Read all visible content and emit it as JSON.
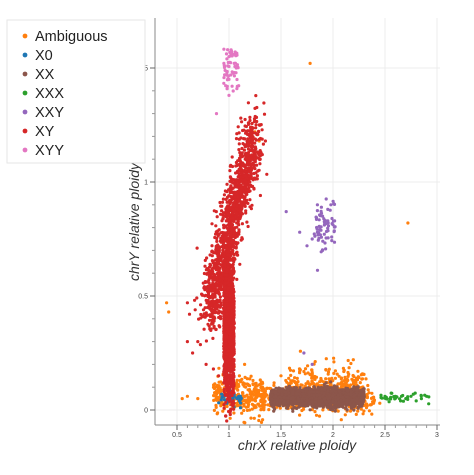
{
  "chart_data": {
    "type": "scatter",
    "title": "",
    "xlabel": "chrX relative ploidy",
    "ylabel": "chrY relative ploidy",
    "xlim": [
      0.3,
      3.0
    ],
    "ylim": [
      -0.05,
      1.7
    ],
    "x_ticks": [
      0.5,
      1,
      1.5,
      2,
      2.5,
      3
    ],
    "x_tick_labels": [
      "0.5",
      "1",
      "1.5",
      "2",
      "2.5",
      "3"
    ],
    "y_ticks": [
      0,
      0.5,
      1,
      1.5
    ],
    "y_tick_labels": [
      "0",
      "0.5",
      "1",
      "1.5"
    ],
    "grid": true,
    "legend_position": "top-left",
    "series": [
      {
        "name": "Ambiguous",
        "color": "#ff7f0e",
        "approx_count": 900,
        "clusters": [
          {
            "x_range": [
              1.3,
              2.4
            ],
            "y_center": 0.05,
            "y_spread": 0.03
          },
          {
            "x_range": [
              0.85,
              1.35
            ],
            "y_center": 0.06,
            "y_spread": 0.04
          },
          {
            "x_range": [
              1.55,
              2.3
            ],
            "y_center": 0.1,
            "y_spread": 0.05
          }
        ],
        "points": [
          [
            0.42,
            0.43
          ],
          [
            0.4,
            0.47
          ],
          [
            0.6,
            0.06
          ],
          [
            0.55,
            0.05
          ],
          [
            1.1,
            0.15
          ],
          [
            1.05,
            0.19
          ],
          [
            1.78,
            1.52
          ],
          [
            2.72,
            0.82
          ],
          [
            1.52,
            0.09
          ],
          [
            1.95,
            0.12
          ],
          [
            2.2,
            0.12
          ],
          [
            2.45,
            0.03
          ],
          [
            2.3,
            0.02
          ],
          [
            1.25,
            1.22
          ],
          [
            1.3,
            1.25
          ],
          [
            1.2,
            1.17
          ],
          [
            1.29,
            1.18
          ],
          [
            1.15,
            0.2
          ],
          [
            1.88,
            0.06
          ],
          [
            2.05,
            0.03
          ],
          [
            0.7,
            0.05
          ],
          [
            1.68,
            0.17
          ],
          [
            1.5,
            0.15
          ]
        ]
      },
      {
        "name": "X0",
        "color": "#1f77b4",
        "approx_count": 30,
        "clusters": [
          {
            "x_range": [
              0.9,
              1.12
            ],
            "y_center": 0.05,
            "y_spread": 0.02
          }
        ],
        "points": [
          [
            0.95,
            0.06
          ],
          [
            1.0,
            0.05
          ],
          [
            1.02,
            0.04
          ],
          [
            1.05,
            0.06
          ],
          [
            0.98,
            0.03
          ],
          [
            1.08,
            0.05
          ],
          [
            1.1,
            0.04
          ]
        ]
      },
      {
        "name": "XX",
        "color": "#8c564b",
        "approx_count": 3000,
        "clusters": [
          {
            "x_range": [
              1.4,
              2.3
            ],
            "y_center": 0.055,
            "y_spread": 0.018
          }
        ],
        "points": [
          [
            1.45,
            0.06
          ],
          [
            1.6,
            0.05
          ],
          [
            1.75,
            0.05
          ],
          [
            1.9,
            0.06
          ],
          [
            2.05,
            0.05
          ],
          [
            2.2,
            0.06
          ],
          [
            1.85,
            0.08
          ],
          [
            1.7,
            0.04
          ],
          [
            1.95,
            0.05
          ]
        ]
      },
      {
        "name": "XXX",
        "color": "#2ca02c",
        "approx_count": 30,
        "clusters": [
          {
            "x_range": [
              2.45,
              2.95
            ],
            "y_center": 0.055,
            "y_spread": 0.012
          }
        ],
        "points": [
          [
            2.5,
            0.06
          ],
          [
            2.55,
            0.05
          ],
          [
            2.6,
            0.06
          ],
          [
            2.65,
            0.04
          ],
          [
            2.7,
            0.05
          ],
          [
            2.75,
            0.06
          ],
          [
            2.8,
            0.04
          ],
          [
            2.85,
            0.05
          ],
          [
            2.9,
            0.06
          ]
        ]
      },
      {
        "name": "XXY",
        "color": "#9467bd",
        "approx_count": 60,
        "clusters": [
          {
            "x_range": [
              1.82,
              2.02
            ],
            "y_center": 0.8,
            "y_spread": 0.06
          }
        ],
        "points": [
          [
            1.9,
            0.85
          ],
          [
            1.95,
            0.88
          ],
          [
            1.85,
            0.78
          ],
          [
            1.8,
            0.75
          ],
          [
            1.92,
            0.82
          ],
          [
            1.98,
            0.9
          ],
          [
            1.75,
            0.72
          ],
          [
            1.68,
            0.78
          ],
          [
            1.85,
            0.9
          ],
          [
            1.9,
            0.7
          ],
          [
            1.55,
            0.87
          ],
          [
            1.72,
            0.25
          ],
          [
            1.8,
            0.2
          ],
          [
            1.95,
            0.83
          ],
          [
            1.99,
            0.84
          ]
        ]
      },
      {
        "name": "XY",
        "color": "#d62728",
        "approx_count": 8000,
        "clusters": [
          {
            "x_range": [
              0.75,
              1.35
            ],
            "y_center": 0.7,
            "y_spread": 0.15,
            "shape": "diagonal"
          },
          {
            "x_range": [
              0.95,
              1.05
            ],
            "y_center": 0.35,
            "y_spread": 0.15
          }
        ],
        "points": [
          [
            0.9,
            0.15
          ],
          [
            0.85,
            0.18
          ],
          [
            0.7,
            0.3
          ],
          [
            0.6,
            0.3
          ],
          [
            0.65,
            0.25
          ],
          [
            0.78,
            0.2
          ],
          [
            1.3,
            1.1
          ],
          [
            1.35,
            1.18
          ],
          [
            1.32,
            1.12
          ],
          [
            0.8,
            0.6
          ],
          [
            1.15,
            1.05
          ],
          [
            1.2,
            1.0
          ],
          [
            1.25,
            1.12
          ],
          [
            0.95,
            0.12
          ],
          [
            1.0,
            0.1
          ],
          [
            0.62,
            0.42
          ],
          [
            0.6,
            0.47
          ]
        ]
      },
      {
        "name": "XYY",
        "color": "#e377c2",
        "approx_count": 50,
        "clusters": [
          {
            "x_range": [
              0.95,
              1.1
            ],
            "y_center": 1.5,
            "y_spread": 0.05
          }
        ],
        "points": [
          [
            1.0,
            1.55
          ],
          [
            1.02,
            1.58
          ],
          [
            1.05,
            1.52
          ],
          [
            0.98,
            1.48
          ],
          [
            1.0,
            1.45
          ],
          [
            1.03,
            1.42
          ],
          [
            1.07,
            1.5
          ],
          [
            1.0,
            1.38
          ],
          [
            1.05,
            1.56
          ],
          [
            0.88,
            1.3
          ],
          [
            1.06,
            1.57
          ],
          [
            0.98,
            1.54
          ]
        ]
      }
    ]
  }
}
